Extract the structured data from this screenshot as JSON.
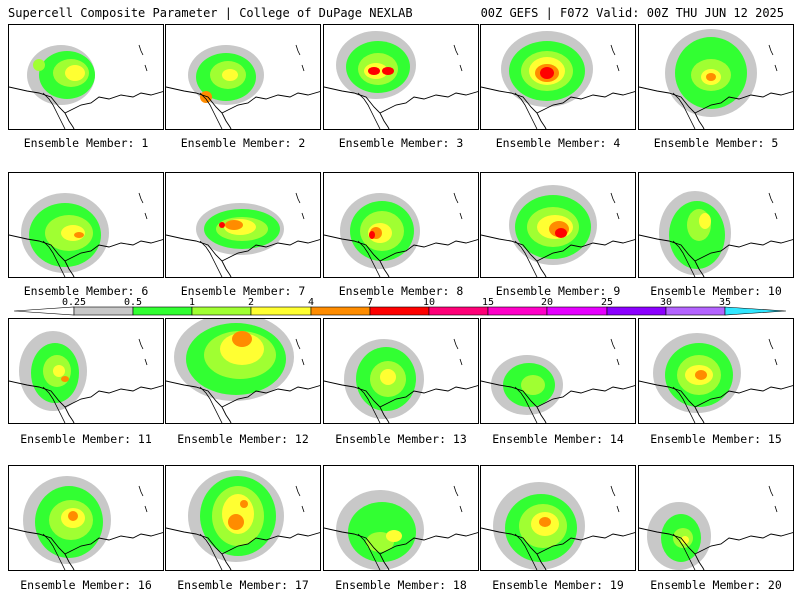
{
  "header": {
    "left_title": "Supercell Composite Parameter | College of DuPage NEXLAB",
    "right_title": "00Z GEFS | F072 Valid: 00Z THU JUN 12 2025"
  },
  "members": [
    {
      "label": "Ensemble Member: 1"
    },
    {
      "label": "Ensemble Member: 2"
    },
    {
      "label": "Ensemble Member: 3"
    },
    {
      "label": "Ensemble Member: 4"
    },
    {
      "label": "Ensemble Member: 5"
    },
    {
      "label": "Ensemble Member: 6"
    },
    {
      "label": "Ensemble Member: 7"
    },
    {
      "label": "Ensemble Member: 8"
    },
    {
      "label": "Ensemble Member: 9"
    },
    {
      "label": "Ensemble Member: 10"
    },
    {
      "label": "Ensemble Member: 11"
    },
    {
      "label": "Ensemble Member: 12"
    },
    {
      "label": "Ensemble Member: 13"
    },
    {
      "label": "Ensemble Member: 14"
    },
    {
      "label": "Ensemble Member: 15"
    },
    {
      "label": "Ensemble Member: 16"
    },
    {
      "label": "Ensemble Member: 17"
    },
    {
      "label": "Ensemble Member: 18"
    },
    {
      "label": "Ensemble Member: 19"
    },
    {
      "label": "Ensemble Member: 20"
    }
  ],
  "colorbar": {
    "ticks": [
      "0.25",
      "0.5",
      "1",
      "2",
      "4",
      "7",
      "10",
      "15",
      "20",
      "25",
      "30",
      "35"
    ],
    "colors": [
      "#ffffff",
      "#c8c8c8",
      "#32ff32",
      "#a0ff32",
      "#ffff32",
      "#ff8c00",
      "#ff0000",
      "#ff0078",
      "#ff00c8",
      "#e600ff",
      "#8c00ff",
      "#b464ff",
      "#32e6ff"
    ]
  },
  "palette": {
    "gray": "#c8c8c8",
    "green": "#32ff32",
    "lime": "#a0ff32",
    "yellow": "#ffff32",
    "orange": "#ff8c00",
    "red": "#ff0000"
  }
}
